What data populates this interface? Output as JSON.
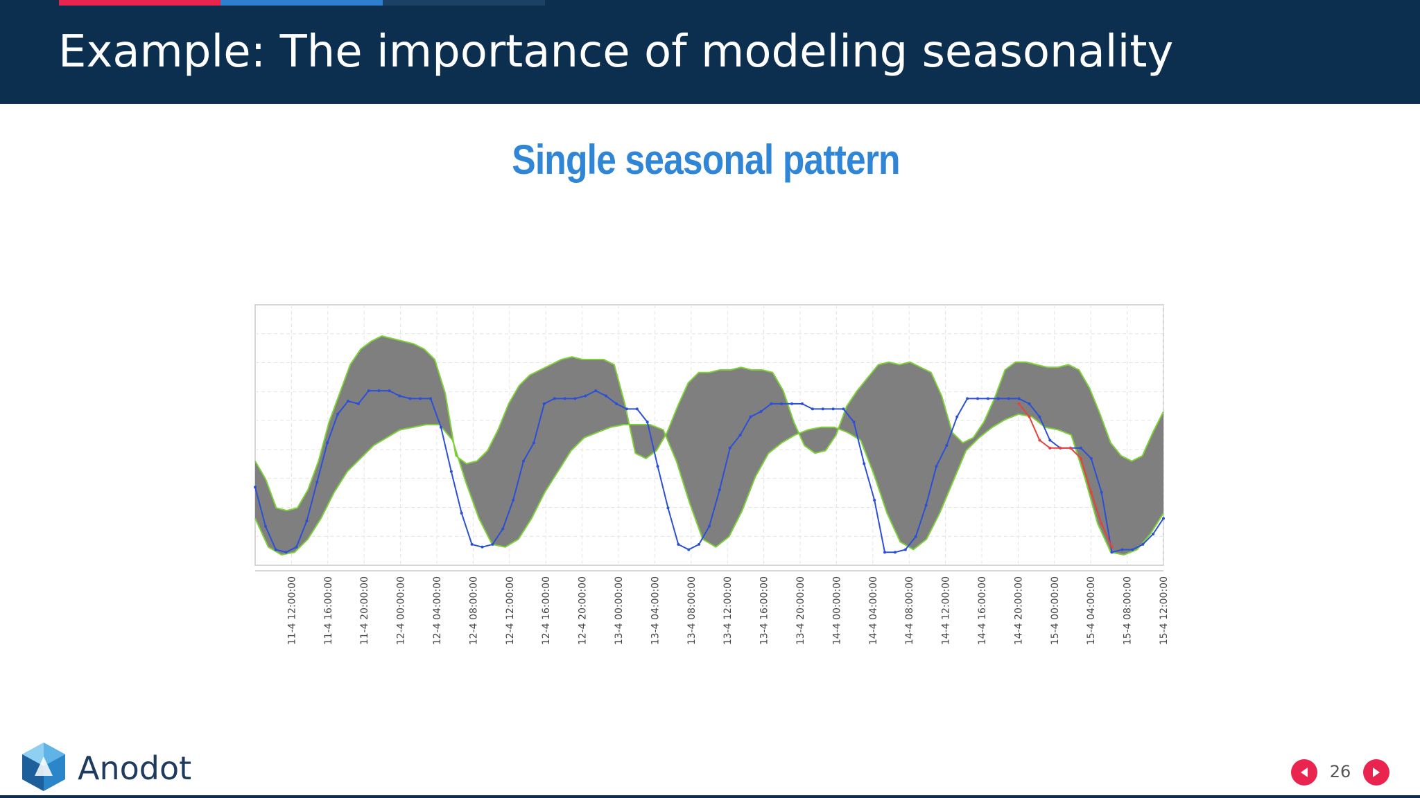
{
  "slide": {
    "title": "Example: The importance of modeling seasonality",
    "page_number": "26",
    "brand": "Anodot",
    "colors": {
      "header_bg": "#0d2f4f",
      "accent_red": "#e8244f",
      "accent_blue": "#2f7fd1",
      "accent_navy": "#1b4264",
      "subtitle": "#2f86d6",
      "nav_button": "#e8244f"
    },
    "icons": {
      "logo": "anodot-logo-icon",
      "prev": "prev-arrow-icon",
      "next": "next-arrow-icon"
    }
  },
  "chart_data": {
    "type": "line",
    "title": "Single seasonal pattern",
    "xlabel": "",
    "ylabel": "",
    "grid": true,
    "legend": "none",
    "x_tick_labels": [
      "11-4 12:00:00",
      "11-4 16:00:00",
      "11-4 20:00:00",
      "12-4 00:00:00",
      "12-4 04:00:00",
      "12-4 08:00:00",
      "12-4 12:00:00",
      "12-4 16:00:00",
      "12-4 20:00:00",
      "13-4 00:00:00",
      "13-4 04:00:00",
      "13-4 08:00:00",
      "13-4 12:00:00",
      "13-4 16:00:00",
      "13-4 20:00:00",
      "14-4 00:00:00",
      "14-4 04:00:00",
      "14-4 08:00:00",
      "14-4 12:00:00",
      "14-4 16:00:00",
      "14-4 20:00:00",
      "15-4 00:00:00",
      "15-4 04:00:00",
      "15-4 08:00:00",
      "15-4 12:00:00"
    ],
    "x_hours": [
      0,
      1,
      2,
      3,
      4,
      5,
      6,
      7,
      8,
      9,
      10,
      11,
      12,
      13,
      14,
      15,
      16,
      17,
      18,
      19,
      20,
      21,
      22,
      23,
      24,
      25,
      26,
      27,
      28,
      29,
      30,
      31,
      32,
      33,
      34,
      35,
      36,
      37,
      38,
      39,
      40,
      41,
      42,
      43,
      44,
      45,
      46,
      47,
      48,
      49,
      50,
      51,
      52,
      53,
      54,
      55,
      56,
      57,
      58,
      59,
      60,
      61,
      62,
      63,
      64,
      65,
      66,
      67,
      68,
      69,
      70,
      71,
      72,
      73,
      74,
      75,
      76,
      77,
      78,
      79,
      80,
      81,
      82,
      83,
      84,
      85,
      86,
      87,
      88,
      89,
      90,
      91,
      92,
      93,
      94,
      95,
      96,
      97,
      98,
      99,
      100
    ],
    "ylim": [
      0,
      100
    ],
    "colors": {
      "band_fill": "#7f7f7f",
      "band_edge": "#7ed03a",
      "series": "#2b4fd6",
      "anomaly": "#e8403a"
    },
    "series": [
      {
        "role": "band-upper",
        "values": [
          40,
          33,
          22,
          21,
          22,
          29,
          40,
          55,
          66,
          77,
          83,
          86,
          88,
          87,
          86,
          85,
          83,
          79,
          66,
          42,
          39,
          40,
          44,
          52,
          62,
          69,
          73,
          75,
          77,
          79,
          80,
          79,
          79,
          79,
          77,
          62,
          43,
          41,
          44,
          51,
          61,
          70,
          74,
          74,
          75,
          75,
          76,
          75,
          75,
          74,
          67,
          55,
          46,
          43,
          44,
          50,
          61,
          67,
          72,
          77,
          78,
          77,
          78,
          76,
          74,
          65,
          51,
          47,
          49,
          55,
          64,
          75,
          78,
          78,
          77,
          76,
          76,
          77,
          75,
          68,
          58,
          47,
          42,
          40,
          42,
          51,
          59
        ]
      },
      {
        "role": "band-lower",
        "values": [
          18,
          7,
          4,
          5,
          10,
          18,
          28,
          36,
          41,
          46,
          49,
          52,
          53,
          54,
          54,
          48,
          32,
          18,
          8,
          7,
          10,
          18,
          28,
          36,
          44,
          49,
          51,
          53,
          54,
          54,
          54,
          52,
          40,
          24,
          10,
          7,
          11,
          21,
          34,
          43,
          47,
          50,
          52,
          53,
          53,
          51,
          48,
          35,
          20,
          9,
          6,
          10,
          20,
          32,
          44,
          49,
          53,
          56,
          58,
          57,
          53,
          52,
          50,
          34,
          16,
          5,
          4,
          6,
          12,
          20
        ]
      },
      {
        "name": "",
        "role": "actual",
        "values": [
          30,
          15,
          6,
          5,
          7,
          17,
          32,
          47,
          58,
          63,
          62,
          67,
          67,
          67,
          65,
          64,
          64,
          64,
          53,
          36,
          20,
          8,
          7,
          8,
          14,
          25,
          40,
          47,
          62,
          64,
          64,
          64,
          65,
          67,
          65,
          62,
          60,
          60,
          55,
          38,
          22,
          8,
          6,
          8,
          15,
          29,
          45,
          50,
          57,
          59,
          62,
          62,
          62,
          62,
          60,
          60,
          60,
          60,
          55,
          39,
          25,
          5,
          5,
          6,
          11,
          23,
          38,
          46,
          57,
          64,
          64,
          64,
          64,
          64,
          64,
          62,
          57,
          48,
          45,
          45,
          45,
          41,
          28,
          5,
          6,
          6,
          8,
          12,
          18
        ]
      },
      {
        "role": "anomaly",
        "values": [
          62,
          57,
          48,
          45,
          45,
          45,
          41,
          28,
          16,
          7
        ]
      }
    ]
  }
}
